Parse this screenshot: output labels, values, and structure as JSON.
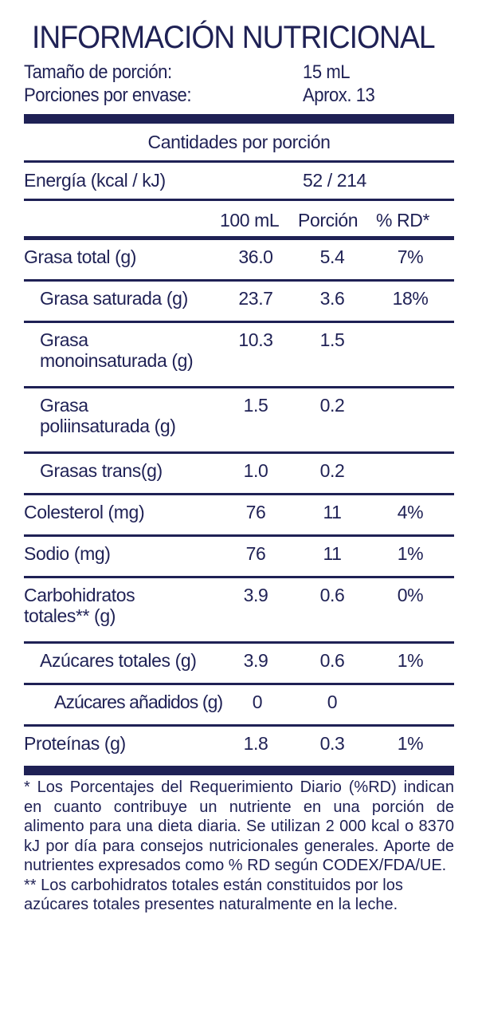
{
  "title": "INFORMACIÓN NUTRICIONAL",
  "serving": {
    "size_label": "Tamaño de porción:",
    "size_value": "15 mL",
    "per_pack_label": "Porciones por envase:",
    "per_pack_value": "Aprox. 13"
  },
  "amounts_label": "Cantidades por porción",
  "energy": {
    "label": "Energía (kcal / kJ)",
    "value": "52 / 214"
  },
  "columns": {
    "per100": "100 mL",
    "portion": "Porción",
    "rd": "% RD*"
  },
  "rows": [
    {
      "name": "Grasa total (g)",
      "per100": "36.0",
      "portion": "5.4",
      "rd": "7%"
    },
    {
      "name": "Grasa saturada (g)",
      "per100": "23.7",
      "portion": "3.6",
      "rd": "18%"
    },
    {
      "name_line1": "Grasa",
      "name_line2": "monoinsaturada (g)",
      "per100": "10.3",
      "portion": "1.5",
      "rd": ""
    },
    {
      "name_line1": "Grasa",
      "name_line2": "poliinsaturada (g)",
      "per100": "1.5",
      "portion": "0.2",
      "rd": ""
    },
    {
      "name": "Grasas trans(g)",
      "per100": "1.0",
      "portion": "0.2",
      "rd": ""
    },
    {
      "name": "Colesterol (mg)",
      "per100": "76",
      "portion": "11",
      "rd": "4%"
    },
    {
      "name": "Sodio (mg)",
      "per100": "76",
      "portion": "11",
      "rd": "1%"
    },
    {
      "name_line1": "Carbohidratos",
      "name_line2": "totales** (g)",
      "per100": "3.9",
      "portion": "0.6",
      "rd": "0%"
    },
    {
      "name": "Azúcares totales (g)",
      "per100": "3.9",
      "portion": "0.6",
      "rd": "1%"
    },
    {
      "name": "Azúcares añadidos (g)",
      "per100": "0",
      "portion": "0",
      "rd": ""
    },
    {
      "name": "Proteínas (g)",
      "per100": "1.8",
      "portion": "0.3",
      "rd": "1%"
    }
  ],
  "footnotes": {
    "rd_note": "* Los Porcentajes del Requerimiento Diario (%RD) indican en cuanto contribuye un nutriente en una porción de alimento para una dieta diaria. Se utilizan 2 000 kcal o 8370 kJ por día para consejos nutricionales generales. Aporte de nutrientes expresados como % RD según CODEX/FDA/UE.",
    "carb_note": "** Los carbohidratos totales están constituidos por los azúcares totales presentes naturalmente en la leche."
  },
  "colors": {
    "ink": "#1f2155",
    "background": "#ffffff"
  }
}
